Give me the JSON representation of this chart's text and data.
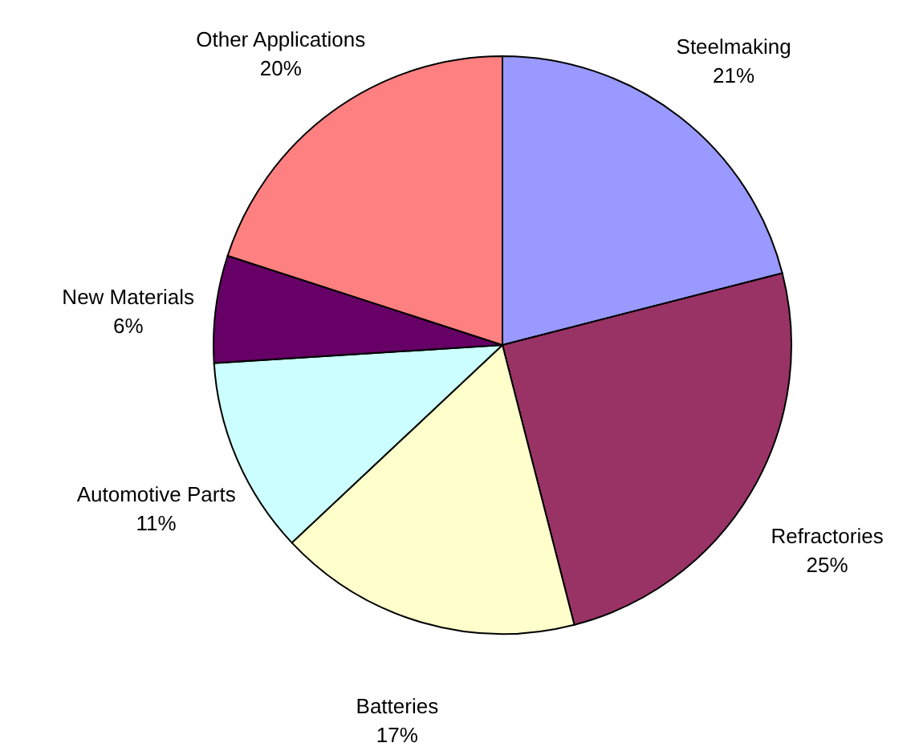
{
  "chart_data": {
    "type": "pie",
    "categories": [
      "Steelmaking",
      "Refractories",
      "Batteries",
      "Automotive Parts",
      "New Materials",
      "Other Applications"
    ],
    "values": [
      21,
      25,
      17,
      11,
      6,
      20
    ],
    "colors": [
      "#9999ff",
      "#993366",
      "#ffffcc",
      "#ccffff",
      "#660066",
      "#ff8080"
    ],
    "value_labels": [
      "21%",
      "25%",
      "17%",
      "11%",
      "6%",
      "20%"
    ]
  }
}
